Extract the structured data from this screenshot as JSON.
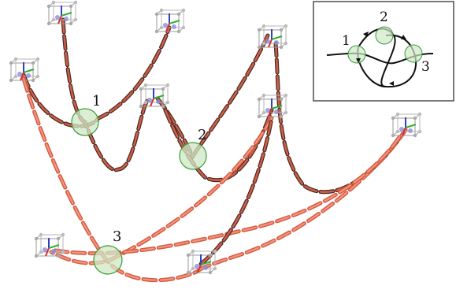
{
  "figure": {
    "crossings": [
      {
        "id": "c1",
        "label": "1"
      },
      {
        "id": "c2",
        "label": "2"
      },
      {
        "id": "c3",
        "label": "3"
      }
    ],
    "inset": {
      "labels": [
        {
          "id": "i1",
          "label": "1"
        },
        {
          "id": "i2",
          "label": "2"
        },
        {
          "id": "i3",
          "label": "3"
        }
      ]
    },
    "colors": {
      "strand_dark": "#4a2a24",
      "strand_orange": "#e0654a",
      "strand_light": "#f2a08c",
      "crossing_fill": "#cfe8c6",
      "crossing_stroke": "#3a9a3a",
      "node_gray": "#9a9a9a",
      "axis_blue": "#3040c0",
      "axis_green": "#30b030",
      "axis_red": "#d03030"
    }
  }
}
